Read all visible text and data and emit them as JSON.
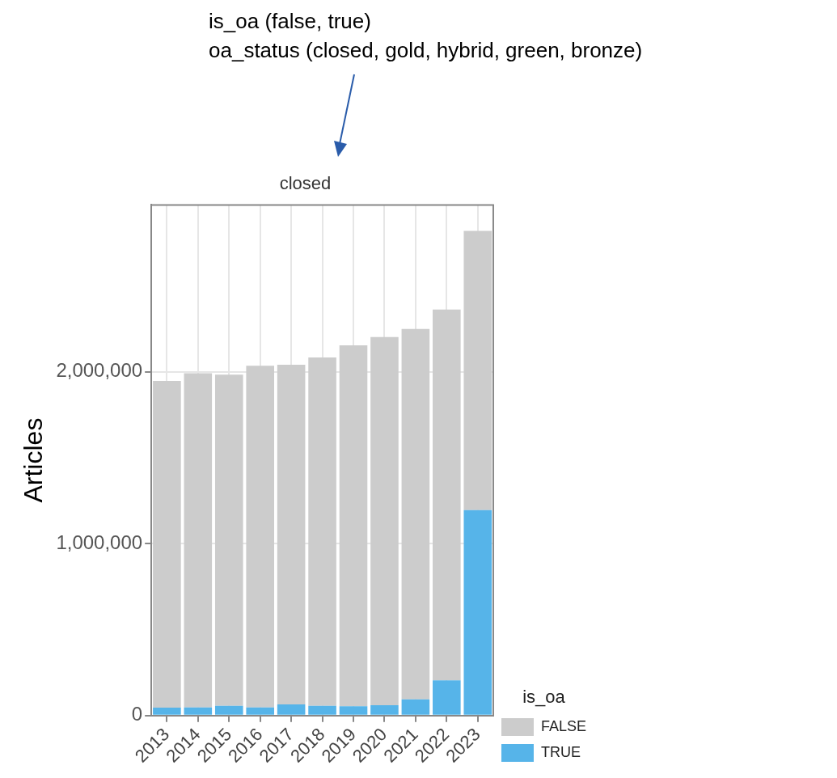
{
  "chart_data": {
    "type": "bar",
    "title": "closed",
    "ylabel": "Articles",
    "legend_title": "is_oa",
    "annotations": [
      "is_oa (false, true)",
      "oa_status (closed, gold, hybrid, green, bronze)"
    ],
    "categories": [
      "2013",
      "2014",
      "2015",
      "2016",
      "2017",
      "2018",
      "2019",
      "2020",
      "2021",
      "2022",
      "2023"
    ],
    "stacked": true,
    "series": [
      {
        "name": "TRUE",
        "color": "#56b4e9",
        "values": [
          46000,
          47000,
          56000,
          47000,
          64000,
          56000,
          54000,
          60000,
          94000,
          204000,
          1195000
        ]
      },
      {
        "name": "FALSE",
        "color": "#cccccc",
        "values": [
          1900000,
          1944000,
          1927000,
          1988000,
          1977000,
          2027000,
          2099000,
          2141000,
          2154000,
          2157000,
          1624000
        ]
      }
    ],
    "ylim": [
      0,
      2970000
    ],
    "yticks": [
      {
        "value": 0,
        "label": "0"
      },
      {
        "value": 1000000,
        "label": "1,000,000"
      },
      {
        "value": 2000000,
        "label": "2,000,000"
      }
    ],
    "grid": true,
    "legend": "right"
  }
}
